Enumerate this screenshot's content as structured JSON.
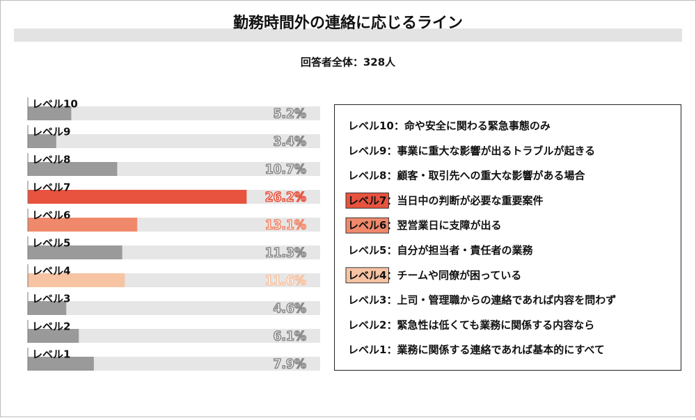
{
  "chart_data": {
    "type": "bar",
    "orientation": "horizontal",
    "title": "勤務時間外の連絡に応じるライン",
    "subtitle": "回答者全体：328人",
    "categories": [
      "レベル10",
      "レベル9",
      "レベル8",
      "レベル7",
      "レベル6",
      "レベル5",
      "レベル4",
      "レベル3",
      "レベル2",
      "レベル1"
    ],
    "values": [
      5.2,
      3.4,
      10.7,
      26.2,
      13.1,
      11.3,
      11.6,
      4.6,
      6.1,
      7.9
    ],
    "value_labels": [
      "5.2%",
      "3.4%",
      "10.7%",
      "26.2%",
      "13.1%",
      "11.3%",
      "11.6%",
      "4.6%",
      "6.1%",
      "7.9%"
    ],
    "base_color": "#9a9a9a",
    "colors": [
      "#9a9a9a",
      "#9a9a9a",
      "#9a9a9a",
      "#e8533f",
      "#f0896b",
      "#9a9a9a",
      "#f6c3a3",
      "#9a9a9a",
      "#9a9a9a",
      "#9a9a9a"
    ],
    "xlim": [
      0,
      35
    ],
    "separator": "：",
    "descriptions": [
      "命や安全に関わる緊急事態のみ",
      "事業に重大な影響が出るトラブルが起きる",
      "顧客・取引先への重大な影響がある場合",
      "当日中の判断が必要な重要案件",
      "翌営業日に支障が出る",
      "自分が担当者・責任者の業務",
      "チームや同僚が困っている",
      "上司・管理職からの連絡であれば内容を問わず",
      "緊急性は低くても業務に関係する内容なら",
      "業務に関係する連絡であれば基本的にすべて"
    ]
  }
}
